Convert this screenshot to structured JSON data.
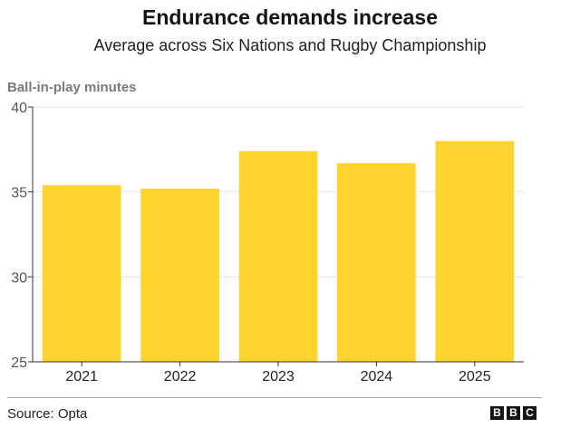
{
  "chart_data": {
    "type": "bar",
    "title": "Endurance demands increase",
    "subtitle": "Average across Six Nations and Rugby Championship",
    "ylabel": "Ball-in-play minutes",
    "xlabel": "",
    "categories": [
      "2021",
      "2022",
      "2023",
      "2024",
      "2025"
    ],
    "values": [
      35.4,
      35.2,
      37.4,
      36.7,
      38.0
    ],
    "ylim": [
      25,
      40
    ],
    "yticks": [
      "25",
      "30",
      "35",
      "40"
    ],
    "bar_color": "#ffd42e",
    "grid": true,
    "legend": "none"
  },
  "footer": {
    "source": "Source: Opta",
    "logo": [
      "B",
      "B",
      "C"
    ]
  }
}
